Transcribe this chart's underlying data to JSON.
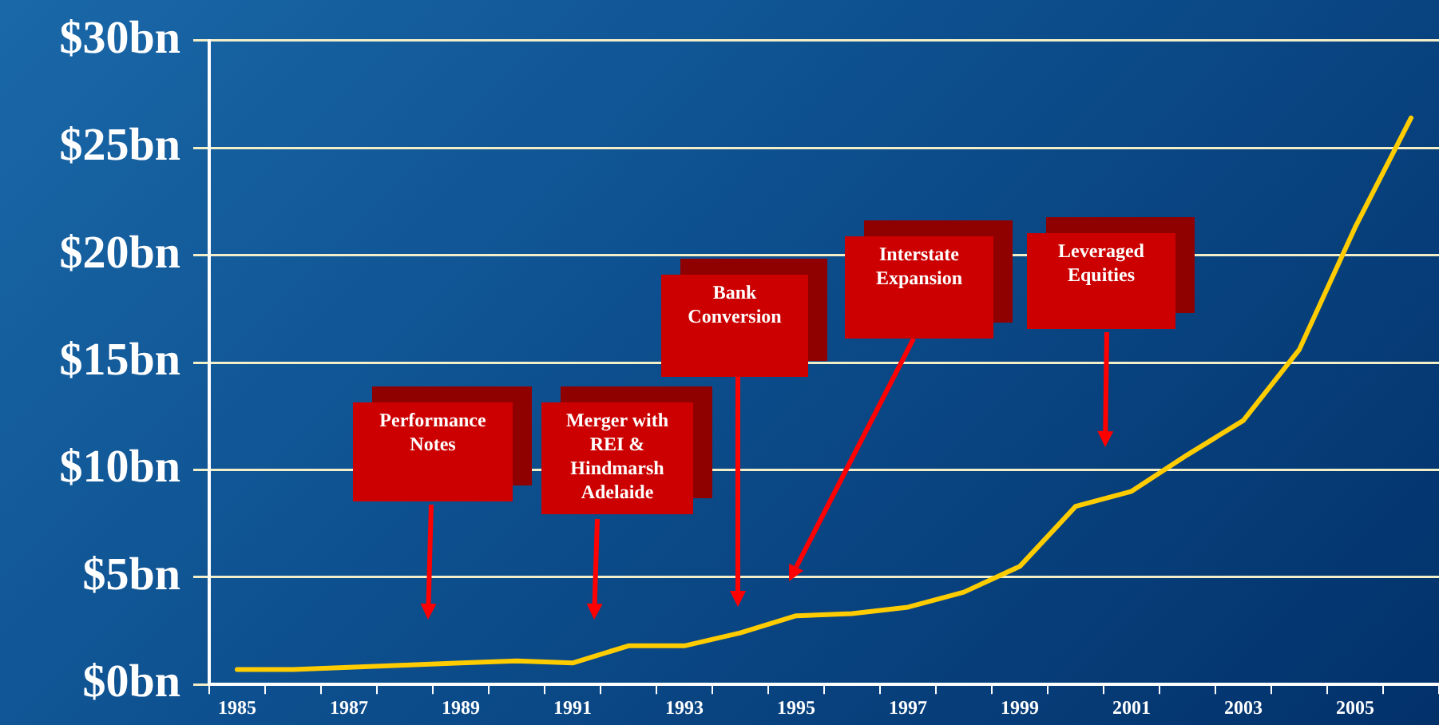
{
  "chart_data": {
    "type": "line",
    "categories": [
      "1985",
      null,
      "1987",
      null,
      "1989",
      null,
      "1991",
      null,
      "1993",
      null,
      "1995",
      null,
      "1997",
      null,
      "1999",
      null,
      "2001",
      null,
      "2003",
      null,
      "2005",
      null
    ],
    "series": [
      {
        "color": "#ffcc00",
        "values": [
          0.7,
          0.7,
          0.8,
          0.9,
          1.0,
          1.1,
          1.0,
          1.8,
          1.8,
          2.4,
          3.2,
          3.3,
          3.6,
          4.3,
          5.5,
          8.3,
          9.0,
          10.7,
          12.3,
          15.6,
          21.3,
          26.4
        ]
      }
    ],
    "ylim": [
      0,
      30
    ],
    "yticks": [
      {
        "value": 0,
        "label": "$0bn"
      },
      {
        "value": 5,
        "label": "$5bn"
      },
      {
        "value": 10,
        "label": "$10bn"
      },
      {
        "value": 15,
        "label": "$15bn"
      },
      {
        "value": 20,
        "label": "$20bn"
      },
      {
        "value": 25,
        "label": "$25bn"
      },
      {
        "value": 30,
        "label": "$30bn"
      }
    ],
    "grid": "y",
    "legend": false,
    "marker": "none",
    "line_style": "solid",
    "annotations": [
      "Performance\nNotes",
      "Merger with\nREI &\nHindmarsh\nAdelaide",
      "Bank\nConversion",
      "Interstate\nExpansion",
      "Leveraged\nEquities"
    ]
  }
}
